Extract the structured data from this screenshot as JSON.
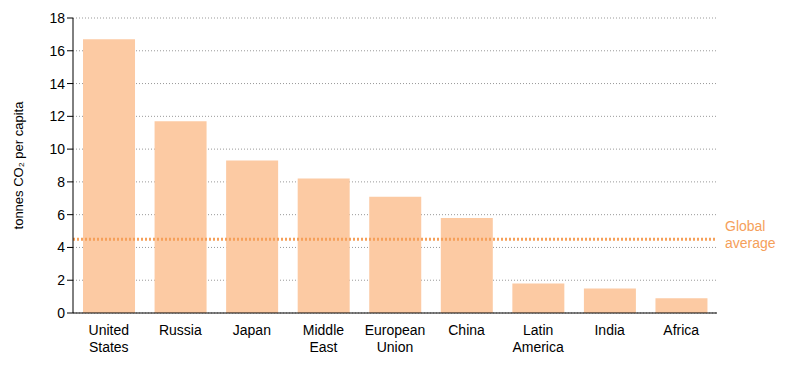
{
  "chart_data": {
    "type": "bar",
    "categories": [
      "United States",
      "Russia",
      "Japan",
      "Middle East",
      "European Union",
      "China",
      "Latin America",
      "India",
      "Africa"
    ],
    "values": [
      16.7,
      11.7,
      9.3,
      8.2,
      7.1,
      5.8,
      1.8,
      1.5,
      0.9
    ],
    "color": "#fccaa3",
    "y_label": "tonnes CO₂ per capita",
    "ylim": [
      0,
      18
    ],
    "yticks": [
      0,
      2,
      4,
      6,
      8,
      10,
      12,
      14,
      16,
      18
    ],
    "grid": true,
    "annotations": [
      {
        "text": "Global average",
        "y": 4.5,
        "color": "#f5a05a",
        "line_style": "dotted"
      }
    ]
  }
}
